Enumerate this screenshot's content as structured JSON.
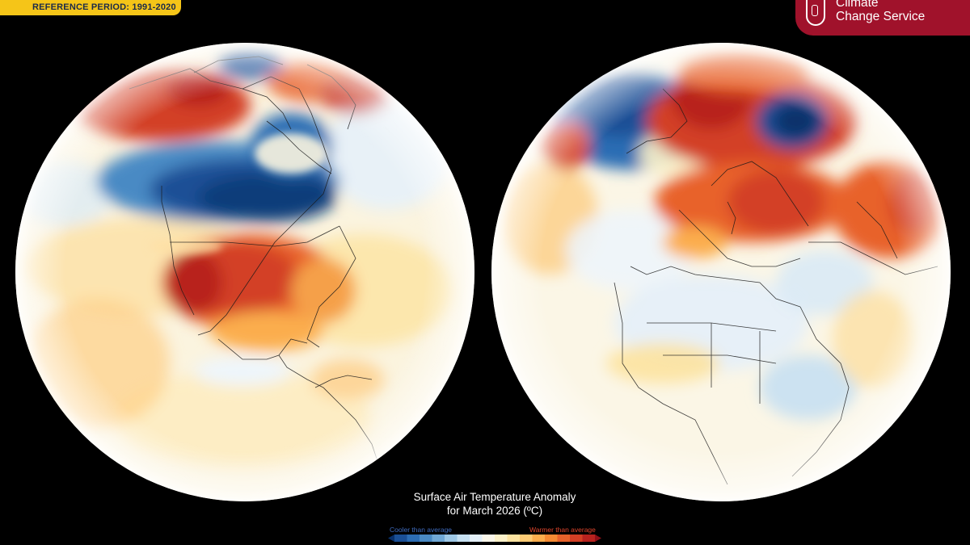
{
  "reference_badge": {
    "text": "REFERENCE PERIOD: 1991-2020"
  },
  "logo": {
    "line1": "Climate",
    "line2": "Change Service"
  },
  "map_title": {
    "line1": "Surface Air Temperature Anomaly",
    "line2": "for March 2026 (ºC)"
  },
  "legend": {
    "cool_label": "Cooler than average",
    "warm_label": "Warmer than average",
    "colors": [
      "#08306b",
      "#1a4f96",
      "#2c6db4",
      "#4a8ac4",
      "#70a8d6",
      "#9ec8e6",
      "#c6e0f2",
      "#e4f0f9",
      "#fbf7ea",
      "#fdf2c9",
      "#fde3a0",
      "#fdcb74",
      "#fbad4d",
      "#f58a33",
      "#e8622a",
      "#d33f25",
      "#b8221e",
      "#8f0f17"
    ]
  },
  "globes": [
    {
      "name": "north-america-globe"
    },
    {
      "name": "europe-africa-globe"
    }
  ]
}
